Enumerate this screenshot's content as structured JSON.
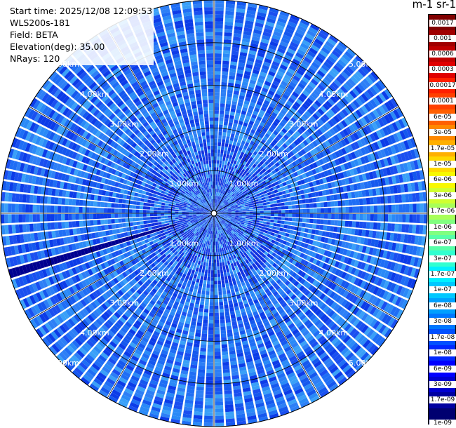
{
  "info": {
    "start_time": "Start time: 2025/12/08 12:09:53",
    "device": "WLS200s-181",
    "field": "Field: BETA",
    "elevation": "Elevation(deg): 35.00",
    "nrays": "NRays: 120"
  },
  "colorbar": {
    "title": "m-1 sr-1",
    "labels_top_to_bottom": [
      "0.0017",
      "0.001",
      "0.0006",
      "0.0003",
      "0.00017",
      "0.0001",
      "6e-05",
      "3e-05",
      "1.7e-05",
      "1e-05",
      "6e-06",
      "3e-06",
      "1.7e-06",
      "1e-06",
      "6e-07",
      "3e-07",
      "1.7e-07",
      "1e-07",
      "6e-08",
      "3e-08",
      "1.7e-08",
      "1e-08",
      "6e-09",
      "3e-09",
      "1.7e-09",
      "1e-09"
    ],
    "colors_top_to_bottom": [
      "#800000",
      "#a00000",
      "#c00000",
      "#e00000",
      "#ff2000",
      "#ff4000",
      "#ff6000",
      "#ff8800",
      "#ffb000",
      "#ffd800",
      "#f8f800",
      "#d0ff30",
      "#a8ff58",
      "#80ff80",
      "#58ffa8",
      "#30ffd0",
      "#00f0ff",
      "#00c8ff",
      "#00a0ff",
      "#0078ff",
      "#0050ff",
      "#0028ff",
      "#0000ff",
      "#0000d0",
      "#0000a0",
      "#000070"
    ]
  },
  "chart_data": {
    "type": "heatmap",
    "projection": "polar PPI (plan position indicator)",
    "field": "BETA",
    "elevation_deg": 35.0,
    "n_rays": 120,
    "max_range_km": 5.0,
    "range_ring_labels": [
      "1.00km",
      "2.00km",
      "3.00km",
      "4.00km",
      "5.00km"
    ],
    "dominant_values_range": [
      1e-08,
      1e-07
    ],
    "colormap": "jet (log scale)"
  }
}
